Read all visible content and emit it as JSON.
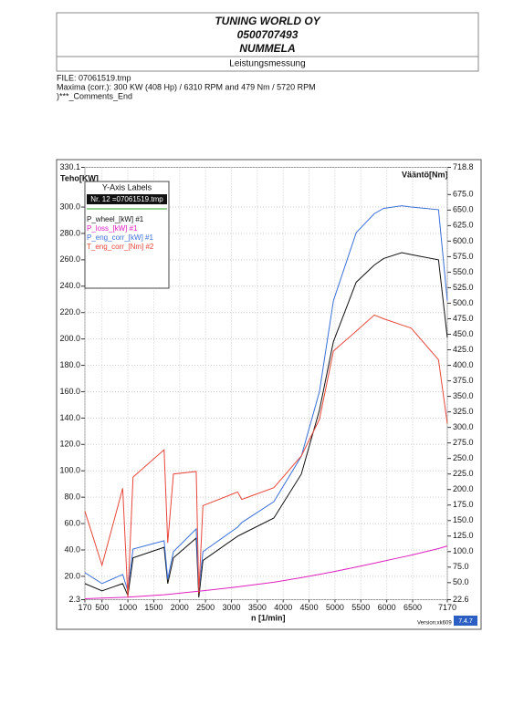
{
  "header": {
    "company": "TUNING WORLD OY",
    "phone": "0500707493",
    "city": "NUMMELA",
    "subtitle": "Leistungsmessung"
  },
  "file_info": [
    "FILE: 07061519.tmp",
    "Maxima (corr.):  300 KW (408 Hp) /  6310 RPM  and   479 Nm /  5720 RPM",
    ")***_Comments_End"
  ],
  "chart_data": {
    "type": "line",
    "y_label": "Teho[KW]",
    "y2_label": "Vääntö[Nm]",
    "x_label": "n  [1/min]",
    "legend_title": "Y-Axis Labels",
    "legend_subtitle": "Nr. 12 =07061519.tmp",
    "version": "Version:xk609",
    "badge": "7.4.7",
    "grid": true,
    "xlim": [
      170,
      7170
    ],
    "xticks": [
      170,
      500,
      1000,
      1500,
      2000,
      2500,
      3000,
      3500,
      4000,
      4500,
      5000,
      5500,
      6000,
      6500,
      7170
    ],
    "ylim": [
      2.3,
      330.1
    ],
    "yticks": [
      2.3,
      {
        "value": 20,
        "label": "20.0"
      },
      {
        "value": 40,
        "label": "40.0"
      },
      {
        "value": 60,
        "label": "60.0"
      },
      {
        "value": 80,
        "label": "80.0"
      },
      {
        "value": 100,
        "label": "100.0"
      },
      {
        "value": 120,
        "label": "120.0"
      },
      {
        "value": 140,
        "label": "140.0"
      },
      {
        "value": 160,
        "label": "160.0"
      },
      {
        "value": 180,
        "label": "180.0"
      },
      {
        "value": 200,
        "label": "200.0"
      },
      {
        "value": 220,
        "label": "220.0"
      },
      {
        "value": 240,
        "label": "240.0"
      },
      {
        "value": 260,
        "label": "260.0"
      },
      {
        "value": 280,
        "label": "280.0"
      },
      {
        "value": 300,
        "label": "300.0"
      },
      330.1
    ],
    "y2lim": [
      22.6,
      718.8
    ],
    "y2ticks": [
      22.6,
      {
        "value": 50,
        "label": "50.0"
      },
      {
        "value": 75,
        "label": "75.0"
      },
      {
        "value": 100,
        "label": "100.0"
      },
      {
        "value": 125,
        "label": "125.0"
      },
      {
        "value": 150,
        "label": "150.0"
      },
      {
        "value": 175,
        "label": "175.0"
      },
      {
        "value": 200,
        "label": "200.0"
      },
      {
        "value": 225,
        "label": "225.0"
      },
      {
        "value": 250,
        "label": "250.0"
      },
      {
        "value": 275,
        "label": "275.0"
      },
      {
        "value": 300,
        "label": "300.0"
      },
      {
        "value": 325,
        "label": "325.0"
      },
      {
        "value": 350,
        "label": "350.0"
      },
      {
        "value": 375,
        "label": "375.0"
      },
      {
        "value": 400,
        "label": "400.0"
      },
      {
        "value": 425,
        "label": "425.0"
      },
      {
        "value": 450,
        "label": "450.0"
      },
      {
        "value": 475,
        "label": "475.0"
      },
      {
        "value": 500,
        "label": "500.0"
      },
      {
        "value": 525,
        "label": "525.0"
      },
      {
        "value": 550,
        "label": "550.0"
      },
      {
        "value": 575,
        "label": "575.0"
      },
      {
        "value": 600,
        "label": "600.0"
      },
      {
        "value": 625,
        "label": "625.0"
      },
      {
        "value": 650,
        "label": "650.0"
      },
      {
        "value": 675,
        "label": "675.0"
      },
      718.8
    ],
    "x": [
      170,
      500,
      900,
      1000,
      1100,
      1700,
      1770,
      1880,
      2320,
      2370,
      2450,
      3120,
      3200,
      3820,
      4350,
      4700,
      4970,
      5410,
      5760,
      5940,
      6290,
      6470,
      7000,
      7170
    ],
    "series": [
      {
        "name": "P_wheel_[kW] #1",
        "color": "#111111",
        "values": [
          14.5,
          9,
          14.5,
          5.5,
          34,
          42,
          14.5,
          34,
          49,
          4,
          32,
          50.4,
          52,
          64.2,
          97.5,
          146,
          198,
          243,
          256,
          261,
          265.4,
          264,
          260,
          201
        ]
      },
      {
        "name": "P_loss_[kW] #1",
        "color": "#e020c0",
        "values": [
          3,
          3.5,
          4,
          4.2,
          4.5,
          6,
          6.3,
          6.7,
          8.5,
          8.7,
          9,
          12,
          12.4,
          15.5,
          19,
          21.5,
          23.5,
          27,
          30,
          31.5,
          34.5,
          36,
          41,
          43
        ]
      },
      {
        "name": "P_eng_corr_[kW] #1",
        "color": "#3a6fd8",
        "values": [
          22.8,
          14.5,
          21.4,
          8.9,
          40.7,
          47,
          18,
          38.7,
          56,
          9,
          38.7,
          57.3,
          60.8,
          76.6,
          111,
          160,
          229,
          280.6,
          295,
          299,
          301,
          300,
          298,
          229
        ]
      },
      {
        "name": "T_eng_corr_[Nm] #2",
        "color": "#e8473a",
        "axis": "y2",
        "values": [
          165,
          78,
          202,
          26,
          220,
          264,
          114,
          225,
          229,
          33,
          174,
          196,
          184,
          203,
          254,
          313,
          423,
          455,
          481,
          475,
          465,
          460,
          409,
          306
        ]
      }
    ]
  }
}
